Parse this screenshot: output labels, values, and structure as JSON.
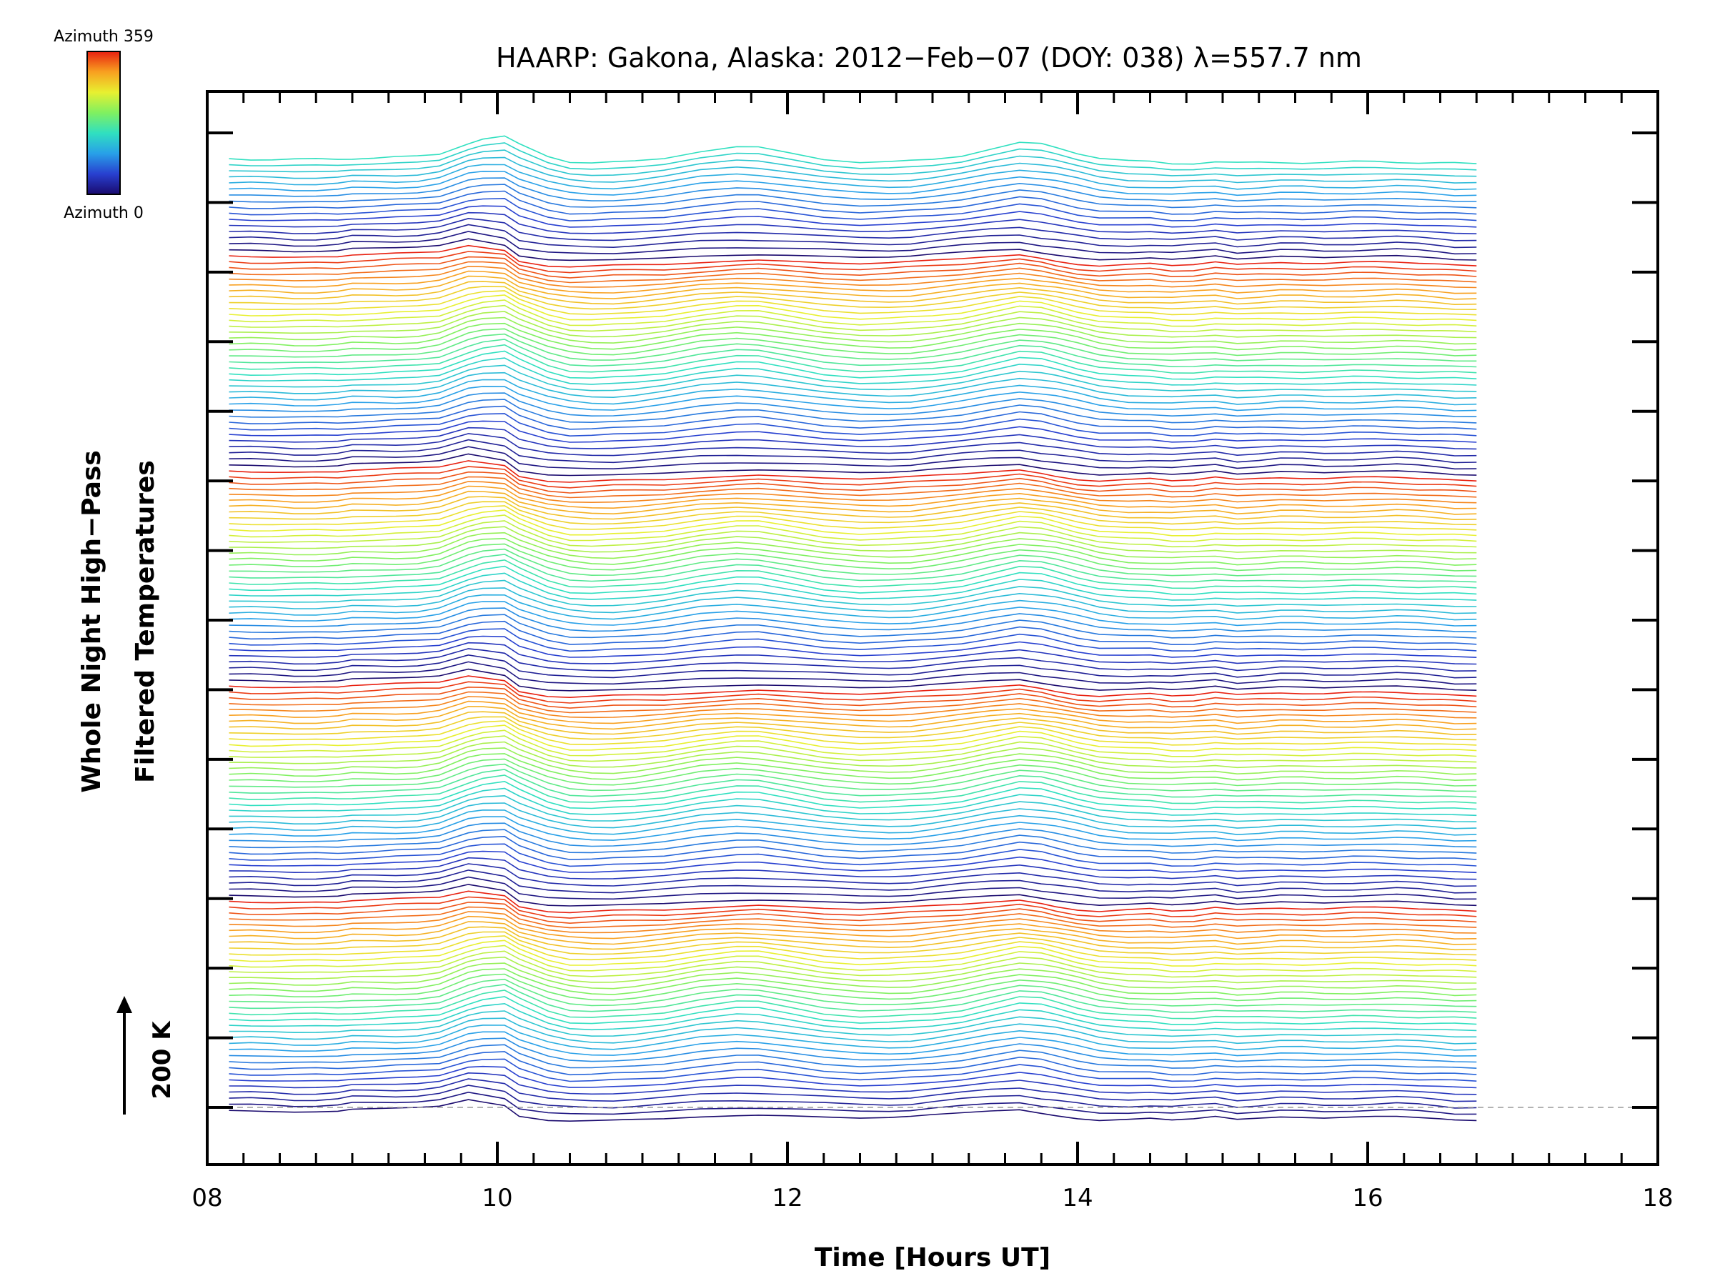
{
  "chart_data": {
    "type": "line",
    "title": "HAARP: Gakona,  Alaska: 2012−Feb−07 (DOY: 038) λ=557.7 nm",
    "xlabel": "Time [Hours UT]",
    "ylabel_line1": "Whole Night High−Pass",
    "ylabel_line2": "Filtered Temperatures",
    "xlim": [
      8,
      18
    ],
    "x_ticks": [
      8,
      10,
      12,
      14,
      16,
      18
    ],
    "x_tick_labels": [
      "08",
      "10",
      "12",
      "14",
      "16",
      "18"
    ],
    "y_tick_count": 15,
    "scale_bar": {
      "label": "200 K",
      "value_K": 200
    },
    "colorbar": {
      "label_top": "Azimuth 359",
      "label_bottom": "Azimuth 0",
      "min": 0,
      "max": 359,
      "colors": [
        "#1a0a6e",
        "#2840d0",
        "#28a0e8",
        "#30e0c0",
        "#80f060",
        "#e8f030",
        "#f8a020",
        "#e82010"
      ]
    },
    "baseline_offset_K": 0,
    "series_spacing_K": 20,
    "series_count": 160,
    "x": [
      8.15,
      8.3,
      8.45,
      8.6,
      8.75,
      8.9,
      9.0,
      9.15,
      9.3,
      9.45,
      9.6,
      9.8,
      9.9,
      10.05,
      10.15,
      10.35,
      10.5,
      10.65,
      10.8,
      10.95,
      11.15,
      11.4,
      11.65,
      11.8,
      12.0,
      12.25,
      12.5,
      12.7,
      12.85,
      13.0,
      13.2,
      13.4,
      13.6,
      13.75,
      13.85,
      14.0,
      14.15,
      14.35,
      14.5,
      14.65,
      14.8,
      14.95,
      15.1,
      15.25,
      15.4,
      15.55,
      15.7,
      15.9,
      16.05,
      16.2,
      16.35,
      16.5,
      16.6,
      16.75
    ],
    "series_shape_K": [
      -10,
      -12,
      -14,
      -16,
      -15,
      -13,
      -6,
      -4,
      -2,
      0,
      4,
      26,
      18,
      6,
      -30,
      -44,
      -46,
      -44,
      -42,
      -40,
      -38,
      -32,
      -28,
      -26,
      -28,
      -32,
      -36,
      -34,
      -30,
      -24,
      -18,
      -12,
      -8,
      -20,
      -28,
      -38,
      -44,
      -40,
      -36,
      -42,
      -38,
      -30,
      -40,
      -36,
      -32,
      -34,
      -36,
      -32,
      -30,
      -30,
      -34,
      -38,
      -42,
      -44
    ],
    "series_bumps": [
      {
        "center": 10.05,
        "width": 0.32,
        "amplitude_K": 120
      },
      {
        "center": 11.65,
        "width": 0.5,
        "amplitude_K": 90
      },
      {
        "center": 13.7,
        "width": 0.45,
        "amplitude_K": 100
      }
    ],
    "azimuth_cycle_length": 36
  }
}
